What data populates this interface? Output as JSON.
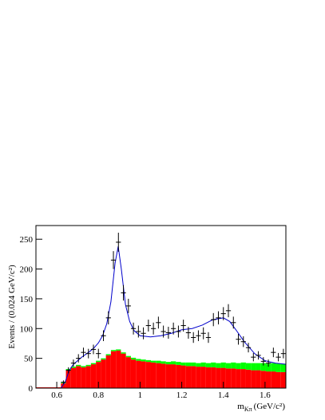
{
  "chart_data": {
    "type": "histogram",
    "y_label": "Events / (0.024 GeV/c²)",
    "x_label": {
      "main": "m",
      "sub": "Kπ",
      "unit": "(GeV/c²)"
    },
    "xlim": [
      0.5,
      1.7
    ],
    "ylim": [
      0,
      273
    ],
    "xticks": [
      0.6,
      0.8,
      1,
      1.2,
      1.4,
      1.6
    ],
    "yticks": [
      0,
      50,
      100,
      150,
      200,
      250
    ],
    "bins": [
      0.5,
      0.524,
      0.548,
      0.572,
      0.596,
      0.62,
      0.644,
      0.668,
      0.692,
      0.716,
      0.74,
      0.764,
      0.788,
      0.812,
      0.836,
      0.86,
      0.884,
      0.908,
      0.932,
      0.956,
      0.98,
      1.004,
      1.028,
      1.052,
      1.076,
      1.1,
      1.124,
      1.148,
      1.172,
      1.196,
      1.22,
      1.244,
      1.268,
      1.292,
      1.316,
      1.34,
      1.364,
      1.388,
      1.412,
      1.436,
      1.46,
      1.484,
      1.508,
      1.532,
      1.556,
      1.58,
      1.604,
      1.628,
      1.652,
      1.676,
      1.7
    ],
    "series": [
      {
        "color": "#ff0000",
        "values": [
          0,
          0,
          0,
          0,
          0,
          8,
          30,
          34,
          37,
          35,
          37,
          40,
          44,
          48,
          55,
          62,
          63,
          58,
          52,
          48,
          46,
          45,
          44,
          43,
          42,
          41,
          40,
          40,
          39,
          38,
          37,
          37,
          36,
          36,
          35,
          35,
          34,
          34,
          33,
          33,
          32,
          32,
          31,
          30,
          30,
          29,
          28,
          28,
          27,
          27
        ]
      },
      {
        "color": "#00ff00",
        "values": [
          0,
          0,
          0,
          0,
          0,
          1,
          2,
          2,
          2,
          2,
          2,
          2,
          2,
          2,
          2,
          2,
          2,
          2,
          2,
          3,
          3,
          3,
          3,
          3,
          4,
          4,
          4,
          5,
          5,
          5,
          6,
          6,
          6,
          7,
          7,
          8,
          8,
          9,
          9,
          10,
          10,
          11,
          11,
          12,
          12,
          13,
          13,
          14,
          14,
          14
        ]
      }
    ],
    "points": {
      "color": "#000000",
      "x": [
        0.632,
        0.656,
        0.68,
        0.704,
        0.728,
        0.752,
        0.776,
        0.8,
        0.824,
        0.848,
        0.872,
        0.896,
        0.92,
        0.944,
        0.968,
        0.992,
        1.016,
        1.04,
        1.064,
        1.088,
        1.112,
        1.136,
        1.16,
        1.184,
        1.208,
        1.232,
        1.256,
        1.28,
        1.304,
        1.328,
        1.352,
        1.376,
        1.4,
        1.424,
        1.448,
        1.472,
        1.496,
        1.52,
        1.544,
        1.568,
        1.592,
        1.616,
        1.64,
        1.664,
        1.688
      ],
      "values": [
        10,
        30,
        42,
        50,
        60,
        58,
        65,
        58,
        88,
        118,
        215,
        245,
        160,
        138,
        100,
        95,
        92,
        105,
        100,
        110,
        95,
        93,
        100,
        95,
        105,
        93,
        85,
        88,
        92,
        85,
        115,
        118,
        125,
        130,
        110,
        82,
        78,
        68,
        52,
        55,
        45,
        42,
        60,
        52,
        58
      ],
      "errors": [
        3,
        5,
        6,
        7,
        8,
        8,
        8,
        8,
        9,
        11,
        15,
        16,
        13,
        12,
        10,
        10,
        10,
        10,
        10,
        10,
        10,
        10,
        10,
        10,
        10,
        10,
        9,
        9,
        10,
        9,
        11,
        11,
        11,
        11,
        10,
        9,
        9,
        8,
        7,
        7,
        7,
        6,
        8,
        7,
        8
      ]
    },
    "fit": {
      "color": "#0000cc",
      "x": [
        0.62,
        0.64,
        0.66,
        0.68,
        0.7,
        0.72,
        0.74,
        0.76,
        0.78,
        0.8,
        0.82,
        0.84,
        0.86,
        0.88,
        0.895,
        0.91,
        0.93,
        0.95,
        0.97,
        1.0,
        1.05,
        1.1,
        1.15,
        1.2,
        1.25,
        1.3,
        1.35,
        1.4,
        1.43,
        1.46,
        1.5,
        1.55,
        1.6,
        1.65,
        1.7
      ],
      "values": [
        0,
        10,
        30,
        40,
        46,
        52,
        57,
        62,
        68,
        76,
        88,
        108,
        145,
        210,
        238,
        200,
        140,
        112,
        97,
        88,
        86,
        88,
        92,
        98,
        100,
        106,
        115,
        118,
        112,
        98,
        78,
        58,
        46,
        42,
        40
      ]
    }
  }
}
